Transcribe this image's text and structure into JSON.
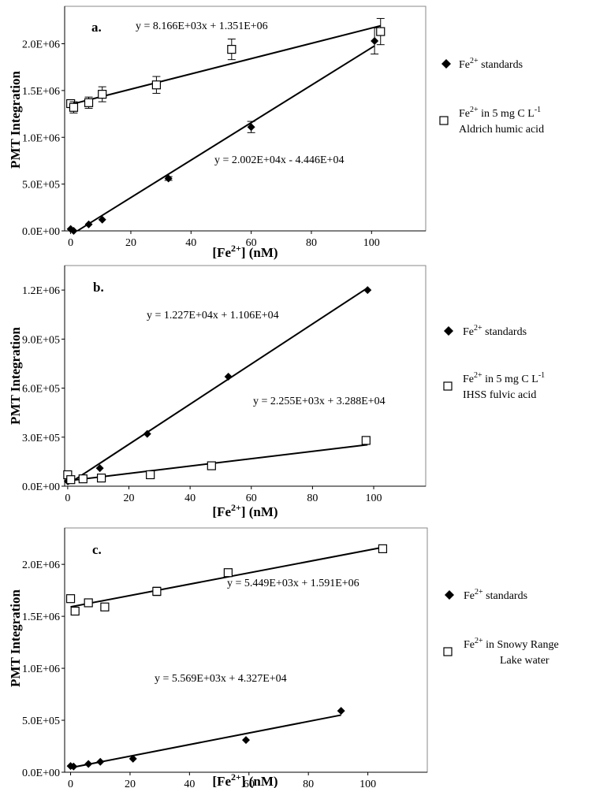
{
  "chart_data": [
    {
      "type": "scatter",
      "panel_label": "a.",
      "xlabel": "[Fe2+] (nM)",
      "ylabel": "PMT Integration",
      "xlim": [
        -2,
        118
      ],
      "ylim": [
        0,
        2400000
      ],
      "x_ticks": [
        "0",
        "20",
        "40",
        "60",
        "80",
        "100"
      ],
      "y_ticks": [
        "0.0E+00",
        "5.0E+05",
        "1.0E+06",
        "1.5E+06",
        "2.0E+06"
      ],
      "series": [
        {
          "name": "Fe2+ standards",
          "marker": "filled-diamond",
          "x": [
            0,
            1,
            6,
            10.5,
            32.5,
            60,
            101
          ],
          "y": [
            20000,
            0,
            70000,
            120000,
            560000,
            1110000,
            2030000
          ],
          "yerr": [
            0,
            0,
            0,
            0,
            20000,
            60000,
            140000
          ],
          "fit": {
            "slope": 20020,
            "intercept": -44460,
            "x_range": [
              2.2,
              101
            ],
            "equation": "y = 2.002E+04x - 4.446E+04"
          }
        },
        {
          "name": "Fe2+ in 5 mg C L-1 Aldrich humic acid",
          "marker": "open-square",
          "x": [
            0,
            1,
            6,
            10.5,
            28.5,
            53.5,
            103
          ],
          "y": [
            1360000,
            1320000,
            1370000,
            1460000,
            1560000,
            1940000,
            2130000
          ],
          "yerr": [
            40000,
            60000,
            60000,
            80000,
            90000,
            110000,
            140000
          ],
          "fit": {
            "slope": 8166,
            "intercept": 1351000,
            "x_range": [
              0,
              103
            ],
            "equation": "y = 8.166E+03x + 1.351E+06"
          }
        }
      ]
    },
    {
      "type": "scatter",
      "panel_label": "b.",
      "xlabel": "[Fe2+] (nM)",
      "ylabel": "PMT Integration",
      "xlim": [
        -1,
        117
      ],
      "ylim": [
        0,
        1350000
      ],
      "x_ticks": [
        "0",
        "20",
        "40",
        "60",
        "80",
        "100"
      ],
      "y_ticks": [
        "0.0E+00",
        "3.0E+05",
        "6.0E+05",
        "9.0E+05",
        "1.2E+06"
      ],
      "series": [
        {
          "name": "Fe2+ standards",
          "marker": "filled-diamond",
          "x": [
            0,
            1,
            5,
            10.5,
            26,
            52.5,
            98
          ],
          "y": [
            30000,
            45000,
            55000,
            110000,
            320000,
            670000,
            1200000
          ],
          "yerr": [
            0,
            0,
            0,
            0,
            0,
            0,
            0
          ],
          "fit": {
            "slope": 12270,
            "intercept": 11060,
            "x_range": [
              0,
              98
            ],
            "equation": "y = 1.227E+04x + 1.106E+04"
          }
        },
        {
          "name": "Fe2+ in 5 mg C L-1 IHSS fulvic acid",
          "marker": "open-square",
          "x": [
            0,
            1,
            5,
            11,
            27,
            47,
            97.5
          ],
          "y": [
            70000,
            40000,
            45000,
            50000,
            70000,
            125000,
            280000
          ],
          "yerr": [
            0,
            0,
            0,
            0,
            0,
            10000,
            15000
          ],
          "fit": {
            "slope": 2255,
            "intercept": 32880,
            "x_range": [
              0,
              98
            ],
            "equation": "y = 2.255E+03x + 3.288E+04"
          }
        }
      ]
    },
    {
      "type": "scatter",
      "panel_label": "c.",
      "xlabel": "[Fe2+] (nM)",
      "ylabel": "PMT Integration",
      "xlim": [
        -2,
        120
      ],
      "ylim": [
        0,
        2350000
      ],
      "x_ticks": [
        "0",
        "20",
        "40",
        "60",
        "80",
        "100"
      ],
      "y_ticks": [
        "0.0E+00",
        "5.0E+05",
        "1.0E+06",
        "1.5E+06",
        "2.0E+06"
      ],
      "series": [
        {
          "name": "Fe2+ standards",
          "marker": "filled-diamond",
          "x": [
            0,
            1,
            6,
            10,
            21,
            59,
            91
          ],
          "y": [
            60000,
            55000,
            80000,
            100000,
            130000,
            310000,
            590000
          ],
          "yerr": [
            0,
            0,
            0,
            0,
            0,
            0,
            0
          ],
          "fit": {
            "slope": 5569,
            "intercept": 43270,
            "x_range": [
              0,
              91
            ],
            "equation": "y = 5.569E+03x + 4.327E+04"
          }
        },
        {
          "name": "Fe2+ in Snowy Range Lake water",
          "marker": "open-square",
          "x": [
            0,
            1.5,
            6,
            11.5,
            29,
            53,
            105
          ],
          "y": [
            1670000,
            1550000,
            1630000,
            1590000,
            1740000,
            1920000,
            2150000
          ],
          "yerr": [
            0,
            0,
            0,
            0,
            40000,
            0,
            0
          ],
          "fit": {
            "slope": 5449,
            "intercept": 1591000,
            "x_range": [
              0,
              105
            ],
            "equation": "y = 5.449E+03x + 1.591E+06"
          }
        }
      ]
    }
  ],
  "legends": [
    {
      "standards": "Fe2+ standards",
      "sample_line1": "Fe2+ in 5 mg C L-1",
      "sample_line2": "Aldrich humic acid"
    },
    {
      "standards": "Fe2+ standards",
      "sample_line1": "Fe2+ in 5 mg C L-1",
      "sample_line2": "IHSS fulvic acid"
    },
    {
      "standards": "Fe2+ standards",
      "sample_line1": "Fe2+ in Snowy Range",
      "sample_line2": "Lake water"
    }
  ],
  "text": {
    "fe_base": "Fe",
    "fe_sup": "2+",
    "lbl_c": "C L",
    "lbl_sup_m1": "-1",
    "in_5mg": " in 5 mg ",
    "in_snowy": " in Snowy Range",
    "standards_word": " standards",
    "xlabel_open": "[Fe",
    "xlabel_close": "] (nM)"
  }
}
